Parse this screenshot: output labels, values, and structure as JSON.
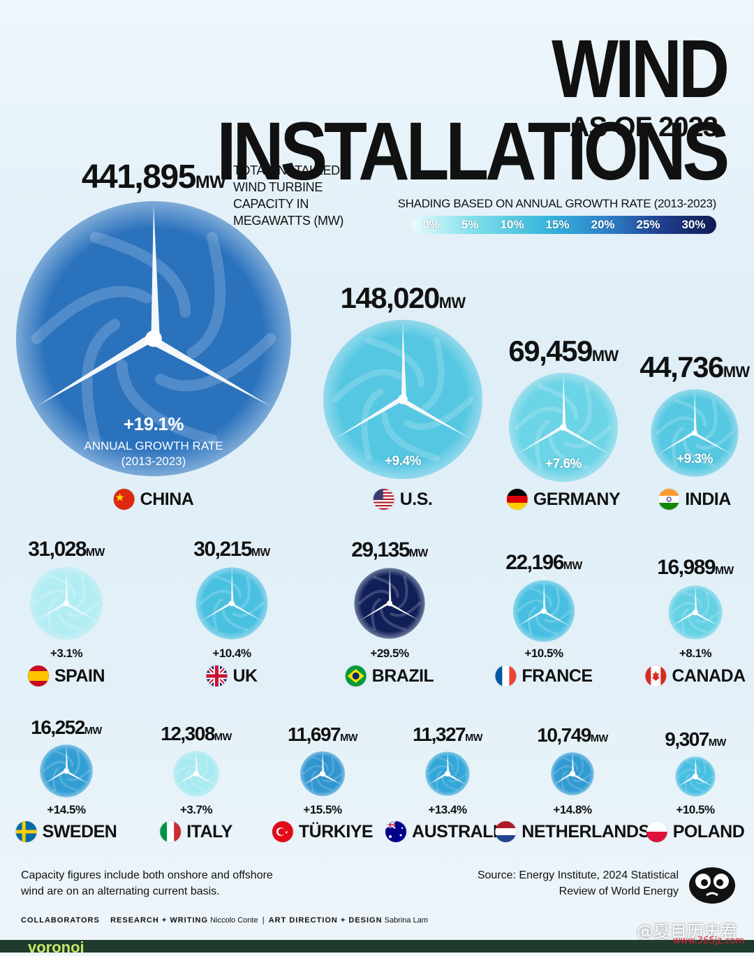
{
  "header": {
    "title": "WIND INSTALLATIONS",
    "subtitle": "AS OF 2023",
    "intro": "TOTAL INSTALLED WIND TURBINE CAPACITY IN MEGAWATTS (MW)"
  },
  "legend": {
    "title": "SHADING BASED ON ANNUAL GROWTH RATE (2013-2023)",
    "stops": [
      "0%",
      "5%",
      "10%",
      "15%",
      "20%",
      "25%",
      "30%"
    ]
  },
  "china_note": {
    "line1": "ANNUAL GROWTH RATE",
    "line2": "(2013-2023)"
  },
  "unit": "MW",
  "chart_data": {
    "type": "bubble",
    "title": "WIND INSTALLATIONS",
    "subtitle": "AS OF 2023",
    "size_measure": "TOTAL INSTALLED WIND TURBINE CAPACITY IN MEGAWATTS (MW)",
    "color_measure": "ANNUAL GROWTH RATE (2013-2023)",
    "categories": [
      "CHINA",
      "U.S.",
      "GERMANY",
      "INDIA",
      "SPAIN",
      "UK",
      "BRAZIL",
      "FRANCE",
      "CANADA",
      "SWEDEN",
      "ITALY",
      "TÜRKIYE",
      "AUSTRALIA",
      "NETHERLANDS",
      "POLAND"
    ],
    "points": [
      {
        "country": "CHINA",
        "capacity": "441,895",
        "value": 441895,
        "growth": "+19.1%",
        "growth_value": 19.1,
        "flag": "china"
      },
      {
        "country": "U.S.",
        "capacity": "148,020",
        "value": 148020,
        "growth": "+9.4%",
        "growth_value": 9.4,
        "flag": "usa"
      },
      {
        "country": "GERMANY",
        "capacity": "69,459",
        "value": 69459,
        "growth": "+7.6%",
        "growth_value": 7.6,
        "flag": "germany"
      },
      {
        "country": "INDIA",
        "capacity": "44,736",
        "value": 44736,
        "growth": "+9.3%",
        "growth_value": 9.3,
        "flag": "india"
      },
      {
        "country": "SPAIN",
        "capacity": "31,028",
        "value": 31028,
        "growth": "+3.1%",
        "growth_value": 3.1,
        "flag": "spain"
      },
      {
        "country": "UK",
        "capacity": "30,215",
        "value": 30215,
        "growth": "+10.4%",
        "growth_value": 10.4,
        "flag": "uk"
      },
      {
        "country": "BRAZIL",
        "capacity": "29,135",
        "value": 29135,
        "growth": "+29.5%",
        "growth_value": 29.5,
        "flag": "brazil"
      },
      {
        "country": "FRANCE",
        "capacity": "22,196",
        "value": 22196,
        "growth": "+10.5%",
        "growth_value": 10.5,
        "flag": "france"
      },
      {
        "country": "CANADA",
        "capacity": "16,989",
        "value": 16989,
        "growth": "+8.1%",
        "growth_value": 8.1,
        "flag": "canada"
      },
      {
        "country": "SWEDEN",
        "capacity": "16,252",
        "value": 16252,
        "growth": "+14.5%",
        "growth_value": 14.5,
        "flag": "sweden"
      },
      {
        "country": "ITALY",
        "capacity": "12,308",
        "value": 12308,
        "growth": "+3.7%",
        "growth_value": 3.7,
        "flag": "italy"
      },
      {
        "country": "TÜRKIYE",
        "capacity": "11,697",
        "value": 11697,
        "growth": "+15.5%",
        "growth_value": 15.5,
        "flag": "turkiye"
      },
      {
        "country": "AUSTRALIA",
        "capacity": "11,327",
        "value": 11327,
        "growth": "+13.4%",
        "growth_value": 13.4,
        "flag": "australia"
      },
      {
        "country": "NETHERLANDS",
        "capacity": "10,749",
        "value": 10749,
        "growth": "+14.8%",
        "growth_value": 14.8,
        "flag": "netherlands"
      },
      {
        "country": "POLAND",
        "capacity": "9,307",
        "value": 9307,
        "growth": "+10.5%",
        "growth_value": 10.5,
        "flag": "poland"
      }
    ]
  },
  "footer": {
    "note_line1": "Capacity figures include both onshore and offshore",
    "note_line2": "wind are on an alternating current basis.",
    "source_line1": "Source: Energy Institute, 2024 Statistical",
    "source_line2": "Review of World Energy",
    "collaborators": "COLLABORATORS",
    "research_label": "RESEARCH + WRITING",
    "research_name": "Niccolo Conte",
    "design_label": "ART DIRECTION + DESIGN",
    "design_name": "Sabrina Lam",
    "brand": "voronoi",
    "watermark": "@夏目历史君",
    "watermark_url": "www.365jz.com"
  },
  "colors": {
    "scale": [
      "#e9fbfd",
      "#7fe0ea",
      "#35b4dc",
      "#2e7ec7",
      "#203f8e",
      "#0f1c52"
    ]
  }
}
